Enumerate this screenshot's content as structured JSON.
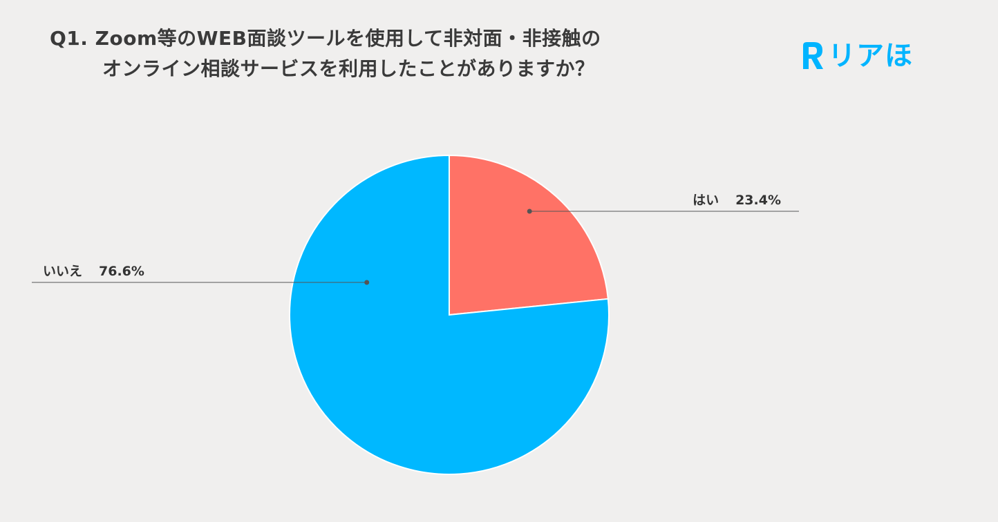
{
  "header": {
    "title_line1": "Q1. Zoom等のWEB面談ツールを使用して非対面・非接触の",
    "title_line2": "オンライン相談サービスを利用したことがありますか？",
    "brand": "リアほ"
  },
  "colors": {
    "background": "#f0efee",
    "brand": "#00b4ff"
  },
  "chart_data": {
    "type": "pie",
    "title": "Q1. Zoom等のWEB面談ツールを使用して非対面・非接触のオンライン相談サービスを利用したことがありますか？",
    "start_angle": "12 o'clock",
    "direction": "clockwise",
    "slices": [
      {
        "label": "はい",
        "value": 23.4,
        "value_label": "23.4%",
        "color": "#ff7266"
      },
      {
        "label": "いいえ",
        "value": 76.6,
        "value_label": "76.6%",
        "color": "#00b8ff"
      }
    ],
    "legend": "none"
  }
}
